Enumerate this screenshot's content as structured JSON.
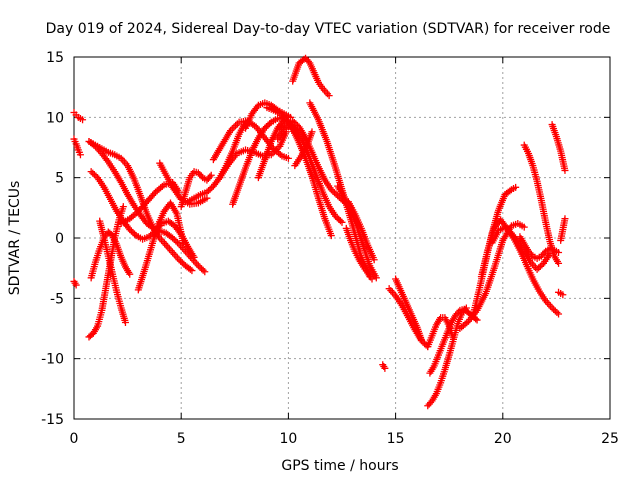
{
  "chart_data": {
    "type": "scatter",
    "title": "Day 019 of 2024, Sidereal Day-to-day VTEC variation (SDTVAR) for receiver rode",
    "xlabel": "GPS time / hours",
    "ylabel": "SDTVAR / TECUs",
    "xlim": [
      0,
      25
    ],
    "ylim": [
      -15,
      15
    ],
    "xticks": [
      "0",
      "5",
      "10",
      "15",
      "20",
      "25"
    ],
    "yticks": [
      "-15",
      "-10",
      "-5",
      "0",
      "5",
      "10",
      "15"
    ],
    "grid": true,
    "legend": "none",
    "marker": "plus",
    "color": "#ff0000",
    "series": [
      {
        "x": [
          0.0,
          0.1,
          0.2,
          0.3,
          0.4
        ],
        "y": [
          10.4,
          10.2,
          10.0,
          9.9,
          9.8
        ]
      },
      {
        "x": [
          0.0,
          0.1,
          0.2,
          0.3
        ],
        "y": [
          8.2,
          7.8,
          7.3,
          6.9
        ]
      },
      {
        "x": [
          0.0,
          0.1
        ],
        "y": [
          -3.6,
          -3.9
        ]
      },
      {
        "x": [
          0.7,
          1.0,
          1.3,
          1.6,
          1.9,
          2.2,
          2.5,
          2.8,
          3.1,
          3.4,
          3.7,
          4.0,
          4.3,
          4.6,
          4.9,
          5.2,
          5.5,
          5.8,
          6.1
        ],
        "y": [
          8.0,
          7.6,
          7.0,
          6.3,
          5.5,
          4.6,
          3.6,
          2.7,
          1.9,
          1.2,
          0.8,
          0.6,
          0.4,
          0.0,
          -0.5,
          -1.1,
          -1.7,
          -2.3,
          -2.8
        ]
      },
      {
        "x": [
          0.8,
          1.1,
          1.4,
          1.7,
          2.0,
          2.3,
          2.6,
          2.9,
          3.2,
          3.5,
          3.8,
          4.1,
          4.4,
          4.7,
          5.0,
          5.3,
          5.6
        ],
        "y": [
          5.5,
          5.0,
          4.2,
          3.2,
          2.2,
          1.4,
          0.7,
          0.2,
          -0.1,
          0.1,
          0.6,
          1.2,
          1.4,
          1.0,
          0.3,
          -0.7,
          -1.6
        ]
      },
      {
        "x": [
          0.7,
          1.0,
          1.3,
          1.6,
          1.9,
          2.2,
          2.5,
          2.8,
          3.1,
          3.4,
          3.7,
          4.0,
          4.3,
          4.6,
          4.9,
          5.2,
          5.5
        ],
        "y": [
          8.0,
          7.7,
          7.4,
          7.1,
          6.9,
          6.6,
          6.0,
          4.9,
          3.5,
          2.0,
          0.8,
          0.0,
          -0.6,
          -1.2,
          -1.8,
          -2.3,
          -2.7
        ]
      },
      {
        "x": [
          0.7,
          0.9,
          1.1,
          1.3,
          1.5,
          1.7,
          1.9,
          2.1,
          2.3
        ],
        "y": [
          -8.2,
          -7.9,
          -7.3,
          -6.0,
          -4.0,
          -2.0,
          0.0,
          1.5,
          2.6
        ]
      },
      {
        "x": [
          0.8,
          1.0,
          1.2,
          1.4,
          1.6,
          1.8,
          2.0,
          2.2,
          2.4,
          2.6
        ],
        "y": [
          -3.3,
          -2.0,
          -0.9,
          0.0,
          0.5,
          0.2,
          -0.6,
          -1.6,
          -2.4,
          -3.0
        ]
      },
      {
        "x": [
          1.2,
          1.4,
          1.6,
          1.8,
          2.0,
          2.2,
          2.4
        ],
        "y": [
          1.4,
          0.0,
          -1.5,
          -3.0,
          -4.5,
          -5.8,
          -7.0
        ]
      },
      {
        "x": [
          3.0,
          3.3,
          3.6,
          3.9,
          4.2,
          4.5,
          4.8,
          5.1
        ],
        "y": [
          -4.3,
          -2.6,
          -0.8,
          1.0,
          2.2,
          2.9,
          2.0,
          -0.4
        ]
      },
      {
        "x": [
          2.2,
          2.6,
          3.0,
          3.4,
          3.8,
          4.2,
          4.6,
          4.9
        ],
        "y": [
          1.2,
          1.6,
          2.2,
          3.0,
          3.8,
          4.4,
          4.6,
          3.8
        ]
      },
      {
        "x": [
          4.0,
          4.3,
          4.6,
          5.0,
          5.4,
          5.8,
          6.2
        ],
        "y": [
          6.2,
          5.2,
          4.2,
          3.2,
          2.8,
          2.9,
          3.3
        ]
      },
      {
        "x": [
          5.0,
          5.2,
          5.4,
          5.6,
          5.8,
          6.0,
          6.2,
          6.4
        ],
        "y": [
          2.6,
          3.8,
          5.0,
          5.5,
          5.4,
          5.0,
          4.8,
          5.2
        ]
      },
      {
        "x": [
          5.3,
          5.6,
          5.9,
          6.2,
          6.5,
          6.8,
          7.1,
          7.4,
          7.7,
          8.0
        ],
        "y": [
          3.0,
          3.3,
          3.6,
          3.8,
          4.3,
          5.0,
          6.0,
          7.2,
          8.6,
          9.6
        ]
      },
      {
        "x": [
          7.4,
          7.7,
          8.0,
          8.3,
          8.6,
          8.9,
          9.2,
          9.5,
          9.8
        ],
        "y": [
          2.8,
          4.3,
          5.8,
          7.2,
          8.3,
          9.1,
          9.6,
          9.9,
          10.0
        ]
      },
      {
        "x": [
          6.5,
          6.9,
          7.3,
          7.7,
          8.1,
          8.5,
          8.9,
          9.3,
          9.7,
          10.0
        ],
        "y": [
          6.5,
          7.7,
          8.9,
          9.6,
          9.7,
          9.2,
          8.3,
          7.4,
          6.8,
          6.6
        ]
      },
      {
        "x": [
          6.8,
          7.2,
          7.6,
          8.0,
          8.4,
          8.8,
          9.2,
          9.6,
          9.9
        ],
        "y": [
          5.0,
          6.1,
          7.0,
          7.3,
          7.1,
          6.8,
          6.9,
          7.6,
          8.8
        ]
      },
      {
        "x": [
          8.0,
          8.3,
          8.6,
          8.9,
          9.2,
          9.5,
          9.8,
          10.1
        ],
        "y": [
          9.1,
          10.3,
          11.0,
          11.2,
          11.0,
          10.6,
          10.3,
          10.0
        ]
      },
      {
        "x": [
          8.6,
          8.9,
          9.2,
          9.5,
          9.8,
          10.1,
          10.3
        ],
        "y": [
          5.0,
          6.5,
          8.0,
          9.1,
          9.8,
          9.6,
          8.8
        ]
      },
      {
        "x": [
          9.0,
          9.3,
          9.6,
          9.9,
          10.2,
          10.5,
          10.8,
          11.1,
          11.4,
          11.7,
          12.0
        ],
        "y": [
          10.8,
          10.6,
          10.3,
          9.8,
          9.0,
          7.9,
          6.6,
          5.1,
          3.3,
          1.6,
          0.2
        ]
      },
      {
        "x": [
          9.5,
          9.8,
          10.1,
          10.4,
          10.7,
          11.0,
          11.3,
          11.6,
          11.9,
          12.2,
          12.5
        ],
        "y": [
          8.2,
          9.0,
          9.3,
          8.9,
          7.9,
          6.6,
          5.2,
          3.8,
          2.6,
          1.8,
          1.3
        ]
      },
      {
        "x": [
          9.6,
          9.9,
          10.2,
          10.5,
          10.8,
          11.1,
          11.4,
          11.7,
          12.0,
          12.3,
          12.6,
          12.9
        ],
        "y": [
          9.0,
          9.6,
          9.7,
          9.2,
          8.3,
          7.1,
          5.9,
          4.8,
          4.0,
          3.5,
          3.0,
          2.5
        ]
      },
      {
        "x": [
          10.2,
          10.5,
          10.8,
          11.0,
          11.2,
          11.4,
          11.6,
          11.9
        ],
        "y": [
          13.0,
          14.5,
          14.9,
          14.5,
          13.7,
          12.9,
          12.4,
          11.8
        ]
      },
      {
        "x": [
          10.3,
          10.6,
          10.9,
          11.1
        ],
        "y": [
          6.0,
          6.8,
          7.8,
          8.8
        ]
      },
      {
        "x": [
          11.0,
          11.4,
          11.8,
          12.2,
          12.6,
          13.0,
          13.4,
          13.8
        ],
        "y": [
          11.2,
          9.8,
          8.0,
          5.8,
          3.4,
          1.0,
          -1.6,
          -3.2
        ]
      },
      {
        "x": [
          12.3,
          12.6,
          12.9,
          13.2,
          13.5,
          13.8,
          14.1
        ],
        "y": [
          4.3,
          3.4,
          2.3,
          1.0,
          -0.7,
          -2.3,
          -3.3
        ]
      },
      {
        "x": [
          12.7,
          12.9,
          13.1,
          13.3,
          13.5,
          13.7,
          13.9
        ],
        "y": [
          0.8,
          -0.2,
          -1.1,
          -1.8,
          -2.4,
          -2.9,
          -3.4
        ]
      },
      {
        "x": [
          12.8,
          13.1,
          13.4,
          13.7,
          14.0
        ],
        "y": [
          3.0,
          2.0,
          0.8,
          -0.6,
          -1.8
        ]
      },
      {
        "x": [
          14.4,
          14.5
        ],
        "y": [
          -10.5,
          -10.8
        ]
      },
      {
        "x": [
          14.7,
          15.0,
          15.3,
          15.6,
          15.9,
          16.2,
          16.5
        ],
        "y": [
          -4.2,
          -4.8,
          -5.6,
          -6.6,
          -7.6,
          -8.5,
          -9.0
        ]
      },
      {
        "x": [
          15.0,
          15.2,
          15.4,
          15.6,
          15.8,
          16.0,
          16.2
        ],
        "y": [
          -3.4,
          -4.2,
          -5.0,
          -5.8,
          -6.6,
          -7.4,
          -8.4
        ]
      },
      {
        "x": [
          16.5,
          16.7,
          16.9,
          17.1,
          17.3,
          17.5,
          17.7
        ],
        "y": [
          -9.0,
          -8.1,
          -7.2,
          -6.6,
          -6.6,
          -7.3,
          -8.4
        ]
      },
      {
        "x": [
          16.5,
          16.7,
          16.9,
          17.1,
          17.3,
          17.5,
          17.7,
          17.9,
          18.1,
          18.3
        ],
        "y": [
          -13.9,
          -13.5,
          -12.9,
          -12.0,
          -10.9,
          -9.7,
          -8.4,
          -7.1,
          -6.2,
          -5.8
        ]
      },
      {
        "x": [
          16.6,
          16.8,
          17.0,
          17.2,
          17.4,
          17.6,
          17.8,
          18.0,
          18.2,
          18.4,
          18.6,
          18.8
        ],
        "y": [
          -11.2,
          -10.6,
          -9.7,
          -8.8,
          -7.9,
          -7.0,
          -6.4,
          -6.0,
          -5.9,
          -6.2,
          -6.5,
          -6.8
        ]
      },
      {
        "x": [
          18.0,
          18.4,
          18.8,
          19.2,
          19.6,
          20.0,
          20.4,
          20.7,
          21.0
        ],
        "y": [
          -7.5,
          -6.9,
          -6.0,
          -4.6,
          -2.5,
          -0.2,
          1.0,
          1.2,
          0.9
        ]
      },
      {
        "x": [
          18.6,
          18.9,
          19.2,
          19.5,
          19.8,
          20.1,
          20.4,
          20.6
        ],
        "y": [
          -6.5,
          -4.3,
          -1.9,
          0.4,
          2.3,
          3.6,
          4.0,
          4.2
        ]
      },
      {
        "x": [
          19.0,
          19.3,
          19.6,
          19.9,
          20.2,
          20.5,
          20.8,
          21.1,
          21.4,
          21.7,
          22.0,
          22.3,
          22.6
        ],
        "y": [
          -3.2,
          -1.0,
          0.8,
          1.5,
          0.8,
          0.0,
          -1.0,
          -2.2,
          -3.4,
          -4.4,
          -5.2,
          -5.8,
          -6.3
        ]
      },
      {
        "x": [
          19.5,
          19.8,
          20.1,
          20.4,
          20.7,
          21.0,
          21.3,
          21.6,
          21.9,
          22.2
        ],
        "y": [
          -0.4,
          0.6,
          0.9,
          0.4,
          -0.3,
          -1.1,
          -2.0,
          -2.6,
          -2.1,
          -1.3
        ]
      },
      {
        "x": [
          20.8,
          21.0,
          21.2,
          21.4,
          21.6,
          21.8,
          22.0,
          22.2,
          22.4,
          22.6
        ],
        "y": [
          0.1,
          -0.5,
          -1.1,
          -1.5,
          -1.7,
          -1.5,
          -1.1,
          -0.9,
          -1.0,
          -1.2
        ]
      },
      {
        "x": [
          21.0,
          21.2,
          21.4,
          21.6,
          21.8,
          22.0,
          22.2,
          22.4,
          22.6
        ],
        "y": [
          7.7,
          7.0,
          6.0,
          4.7,
          3.1,
          1.3,
          -0.3,
          -1.5,
          -2.1
        ]
      },
      {
        "x": [
          22.3,
          22.5,
          22.7,
          22.9
        ],
        "y": [
          9.4,
          8.4,
          7.2,
          5.6
        ]
      },
      {
        "x": [
          22.7,
          22.9
        ],
        "y": [
          -0.2,
          1.6
        ]
      },
      {
        "x": [
          22.6,
          22.8
        ],
        "y": [
          -4.5,
          -4.7
        ]
      }
    ]
  }
}
